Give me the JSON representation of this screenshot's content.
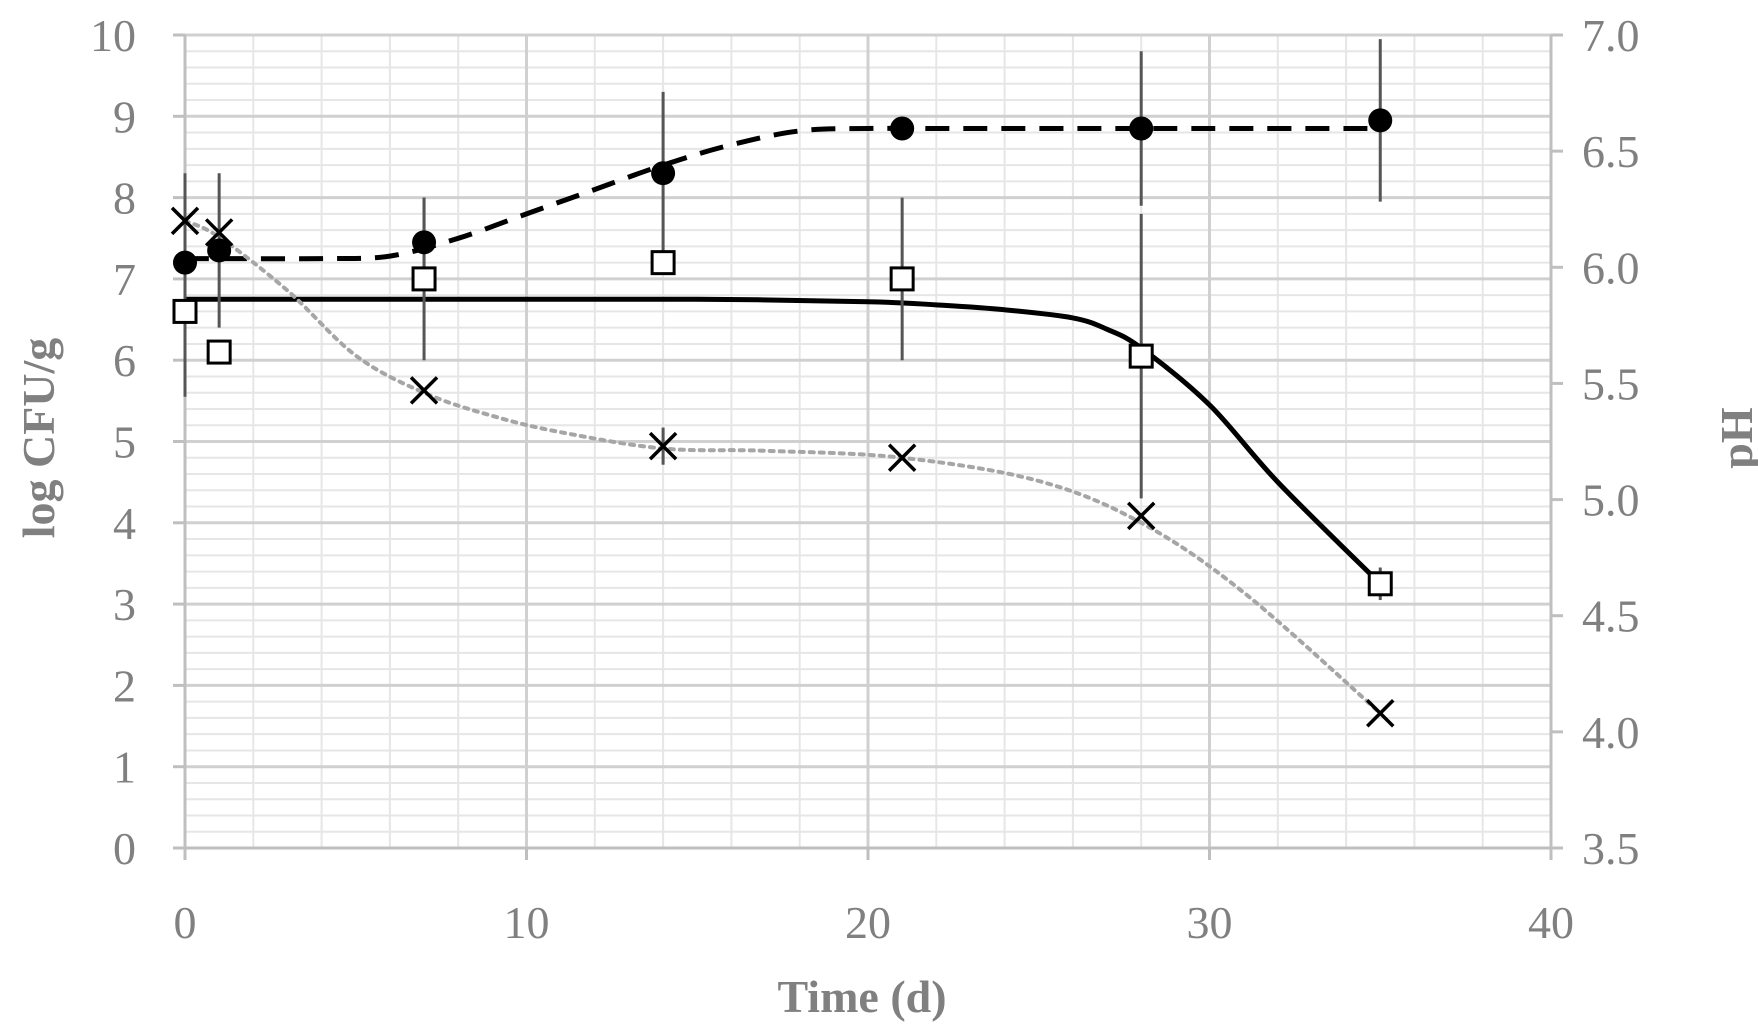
{
  "chart_data": {
    "type": "scatter",
    "title": "",
    "xlabel": "Time (d)",
    "ylabel": "log CFU/g",
    "y2label": "pH",
    "xlim": [
      0,
      40
    ],
    "ylim": [
      0,
      10
    ],
    "y2lim": [
      3.5,
      7.0
    ],
    "xticks": [
      "0",
      "10",
      "20",
      "30",
      "40"
    ],
    "yticks": [
      "0",
      "1",
      "2",
      "3",
      "4",
      "5",
      "6",
      "7",
      "8",
      "9",
      "10"
    ],
    "y2ticks": [
      "3.5",
      "4.0",
      "4.5",
      "5.0",
      "5.5",
      "6.0",
      "6.5",
      "7.0"
    ],
    "grid": true,
    "legend": "none",
    "series": [
      {
        "name": "filled-circle",
        "marker": "circle-filled",
        "axis": "left",
        "x": [
          0,
          1,
          7,
          14,
          21,
          28,
          35
        ],
        "y": [
          7.2,
          7.35,
          7.45,
          8.3,
          8.85,
          8.85,
          8.95
        ],
        "err": [
          1.1,
          0.95,
          0.55,
          1.0,
          0.0,
          0.95,
          1.0
        ],
        "fit_x": [
          0,
          1,
          4,
          6,
          8,
          10,
          12,
          14,
          16,
          18,
          20,
          22,
          26,
          30,
          35
        ],
        "fit_y": [
          7.25,
          7.25,
          7.25,
          7.28,
          7.5,
          7.8,
          8.1,
          8.4,
          8.65,
          8.82,
          8.85,
          8.85,
          8.85,
          8.85,
          8.85
        ],
        "fit_style": "dashed"
      },
      {
        "name": "open-square",
        "marker": "square-open",
        "axis": "left",
        "x": [
          0,
          1,
          7,
          14,
          21,
          28,
          35
        ],
        "y": [
          6.6,
          6.1,
          7.0,
          7.2,
          7.0,
          6.05,
          3.25
        ],
        "err": [
          1.05,
          0.0,
          1.0,
          0.0,
          1.0,
          1.75,
          0.2
        ],
        "fit_x": [
          0,
          5,
          10,
          15,
          20,
          22,
          24,
          26,
          27,
          28,
          30,
          32,
          35
        ],
        "fit_y": [
          6.75,
          6.75,
          6.75,
          6.75,
          6.72,
          6.68,
          6.62,
          6.52,
          6.38,
          6.15,
          5.45,
          4.5,
          3.25
        ],
        "fit_style": "solid"
      },
      {
        "name": "cross",
        "marker": "x",
        "axis": "right",
        "x": [
          0,
          1,
          7,
          14,
          21,
          28,
          35
        ],
        "y": [
          6.2,
          6.15,
          5.47,
          5.23,
          5.18,
          4.93,
          4.08
        ],
        "err": [
          0.0,
          0.0,
          0.0,
          0.08,
          0.0,
          0.0,
          0.0
        ],
        "fit_x": [
          0,
          1,
          3,
          5,
          7,
          9,
          11,
          14,
          17,
          21,
          25,
          28,
          31,
          35
        ],
        "fit_y": [
          6.2,
          6.13,
          5.9,
          5.62,
          5.46,
          5.36,
          5.29,
          5.22,
          5.21,
          5.18,
          5.08,
          4.9,
          4.6,
          4.08
        ],
        "fit_style": "dotted"
      }
    ]
  }
}
